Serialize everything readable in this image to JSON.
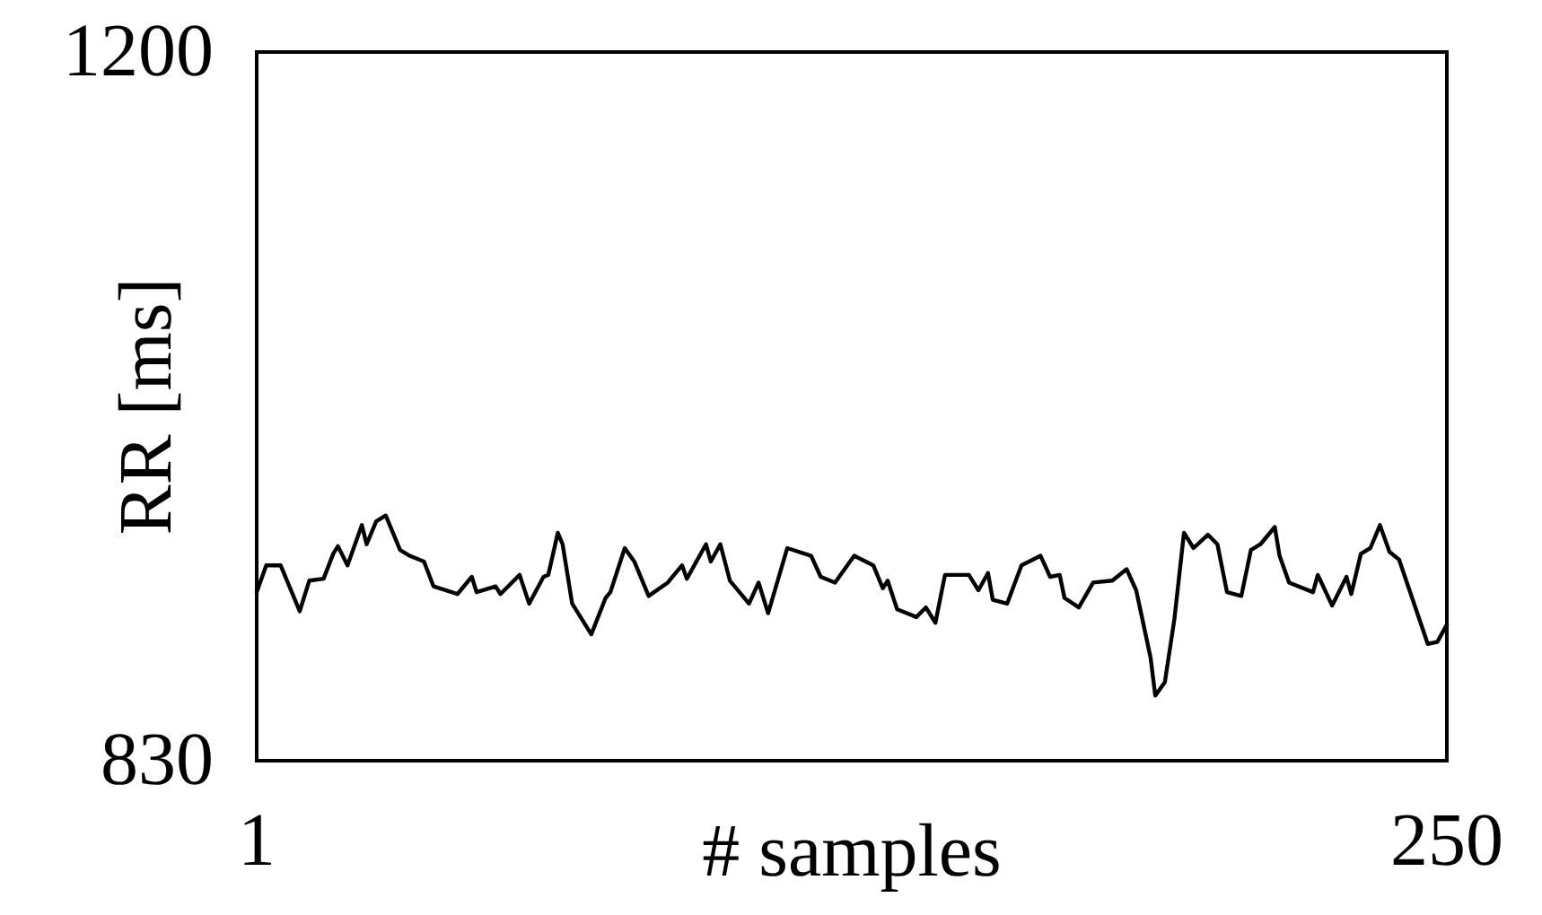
{
  "chart_data": {
    "type": "line",
    "xlabel": "# samples",
    "ylabel": "RR [ms]",
    "xlim": [
      1,
      250
    ],
    "xticks": [
      1,
      250
    ],
    "ylim": [
      830,
      1200
    ],
    "yticks": [
      830,
      1200
    ],
    "marker": "none",
    "line_style": "solid",
    "series": [
      {
        "color": "#000000",
        "x": [
          1,
          3,
          6,
          10,
          12,
          15,
          17,
          18,
          20,
          23,
          24,
          26,
          28,
          31,
          33,
          36,
          38,
          43,
          46,
          47,
          51,
          52,
          56,
          58,
          61,
          62,
          64,
          65,
          67,
          71,
          74,
          75,
          78,
          80,
          83,
          87,
          90,
          91,
          95,
          96,
          98,
          100,
          104,
          106,
          108,
          112,
          117,
          119,
          122,
          126,
          130,
          132,
          133,
          135,
          139,
          141,
          143,
          145,
          150,
          152,
          154,
          155,
          158,
          161,
          165,
          167,
          169,
          170,
          173,
          176,
          180,
          183,
          185,
          188,
          189,
          191,
          193,
          195,
          197,
          200,
          202,
          204,
          207,
          209,
          211,
          214,
          215,
          217,
          222,
          223,
          226,
          229,
          230,
          232,
          234,
          236,
          238,
          240,
          243,
          246,
          248,
          250
        ],
        "values": [
          918,
          932,
          932,
          908,
          924,
          925,
          938,
          942,
          932,
          953,
          943,
          955,
          958,
          940,
          937,
          934,
          921,
          917,
          926,
          918,
          921,
          917,
          927,
          912,
          926,
          927,
          949,
          943,
          912,
          896,
          915,
          918,
          941,
          934,
          916,
          923,
          932,
          925,
          943,
          934,
          943,
          924,
          912,
          923,
          907,
          941,
          937,
          926,
          923,
          937,
          932,
          920,
          924,
          909,
          905,
          910,
          902,
          927,
          927,
          919,
          928,
          914,
          912,
          932,
          937,
          926,
          927,
          915,
          910,
          923,
          924,
          930,
          919,
          884,
          864,
          871,
          904,
          949,
          941,
          948,
          943,
          918,
          916,
          940,
          943,
          952,
          937,
          923,
          918,
          927,
          911,
          926,
          917,
          938,
          941,
          953,
          939,
          935,
          913,
          891,
          892,
          901
        ]
      }
    ]
  }
}
